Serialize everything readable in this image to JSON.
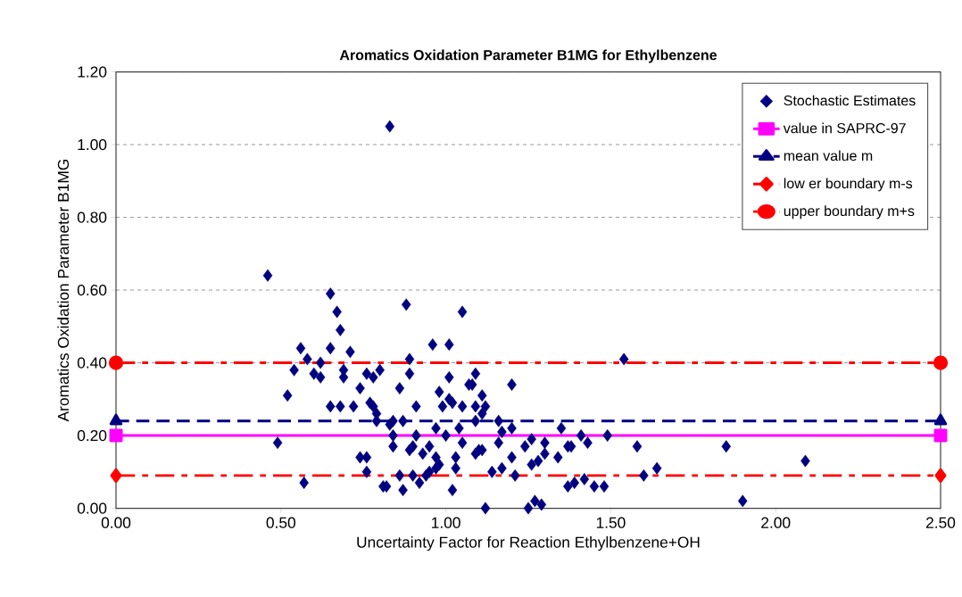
{
  "chart_data": {
    "type": "scatter",
    "title": "Aromatics Oxidation Parameter B1MG for Ethylbenzene",
    "xlabel": "Uncertainty Factor for Reaction Ethylbenzene+OH",
    "ylabel": "Aromatics Oxidation Parameter B1MG",
    "xlim": [
      0,
      2.5
    ],
    "ylim": [
      0,
      1.2
    ],
    "xticks": [
      {
        "value": 0,
        "label": "0.00"
      },
      {
        "value": 0.5,
        "label": "0.50"
      },
      {
        "value": 1,
        "label": "1.00"
      },
      {
        "value": 1.5,
        "label": "1.50"
      },
      {
        "value": 2,
        "label": "2.00"
      },
      {
        "value": 2.5,
        "label": "2.50"
      }
    ],
    "yticks": [
      {
        "value": 0,
        "label": "0.00"
      },
      {
        "value": 0.2,
        "label": "0.20"
      },
      {
        "value": 0.4,
        "label": "0.40"
      },
      {
        "value": 0.6,
        "label": "0.60"
      },
      {
        "value": 0.8,
        "label": "0.80"
      },
      {
        "value": 1,
        "label": "1.00"
      },
      {
        "value": 1.2,
        "label": "1.20"
      }
    ],
    "grid": "y",
    "legend": "top right",
    "series": [
      {
        "name": "Stochastic Estimates",
        "marker": "diamond",
        "color": "#000080",
        "x": [
          0.83,
          0.46,
          0.65,
          0.67,
          0.68,
          0.56,
          0.65,
          0.71,
          0.58,
          0.62,
          0.54,
          0.6,
          0.62,
          0.69,
          0.69,
          0.74,
          0.76,
          0.78,
          0.8,
          0.52,
          0.65,
          0.68,
          0.72,
          0.77,
          0.78,
          0.79,
          0.79,
          0.49,
          0.74,
          0.76,
          0.76,
          0.57,
          0.81,
          0.88,
          1.05,
          0.96,
          1.01,
          0.89,
          0.89,
          1.01,
          1.09,
          0.86,
          0.98,
          1.01,
          1.02,
          1.07,
          1.08,
          1.11,
          1.2,
          0.91,
          0.99,
          1.05,
          1.09,
          1.12,
          1.11,
          1.09,
          0.83,
          0.84,
          0.87,
          0.97,
          1.04,
          1.16,
          1.17,
          1.2,
          1.35,
          0.84,
          1.0,
          1.05,
          0.91,
          0.84,
          0.89,
          0.9,
          0.95,
          0.93,
          0.97,
          1.03,
          1.09,
          1.1,
          1.11,
          1.16,
          1.2,
          1.24,
          1.26,
          1.26,
          1.28,
          1.3,
          1.3,
          1.34,
          1.37,
          0.95,
          0.97,
          0.98,
          0.94,
          1.03,
          0.86,
          0.9,
          0.92,
          0.82,
          0.87,
          1.02,
          1.14,
          1.17,
          1.21,
          1.12,
          1.25,
          1.27,
          1.29,
          1.37,
          1.54,
          1.41,
          1.43,
          1.49,
          1.38,
          1.58,
          1.85,
          1.39,
          1.42,
          1.45,
          1.48,
          1.6,
          1.64,
          1.9,
          2.09
        ],
        "values": [
          1.05,
          0.64,
          0.59,
          0.54,
          0.49,
          0.44,
          0.44,
          0.43,
          0.41,
          0.4,
          0.38,
          0.37,
          0.36,
          0.38,
          0.36,
          0.33,
          0.37,
          0.36,
          0.38,
          0.31,
          0.28,
          0.28,
          0.28,
          0.29,
          0.28,
          0.26,
          0.24,
          0.18,
          0.14,
          0.14,
          0.1,
          0.07,
          0.06,
          0.56,
          0.54,
          0.45,
          0.45,
          0.41,
          0.37,
          0.36,
          0.37,
          0.33,
          0.32,
          0.3,
          0.29,
          0.34,
          0.34,
          0.31,
          0.34,
          0.28,
          0.28,
          0.28,
          0.28,
          0.28,
          0.26,
          0.24,
          0.23,
          0.24,
          0.24,
          0.22,
          0.22,
          0.24,
          0.21,
          0.22,
          0.22,
          0.2,
          0.2,
          0.18,
          0.2,
          0.17,
          0.16,
          0.17,
          0.17,
          0.15,
          0.14,
          0.14,
          0.15,
          0.16,
          0.16,
          0.18,
          0.14,
          0.17,
          0.19,
          0.12,
          0.13,
          0.18,
          0.15,
          0.14,
          0.17,
          0.1,
          0.11,
          0.12,
          0.09,
          0.11,
          0.09,
          0.09,
          0.07,
          0.06,
          0.05,
          0.05,
          0.1,
          0.11,
          0.09,
          0.0,
          0.0,
          0.02,
          0.01,
          0.06,
          0.41,
          0.2,
          0.18,
          0.2,
          0.17,
          0.17,
          0.17,
          0.07,
          0.08,
          0.06,
          0.06,
          0.09,
          0.11,
          0.02,
          0.13
        ]
      },
      {
        "name": "value in SAPRC-97",
        "type": "line",
        "marker": "square",
        "line_style": "solid",
        "color": "#ff00ff",
        "x": [
          0,
          2.5
        ],
        "values": [
          0.2,
          0.2
        ]
      },
      {
        "name": "mean value m",
        "type": "line",
        "marker": "triangle",
        "line_style": "dashed",
        "color": "#000080",
        "x": [
          0,
          2.5
        ],
        "values": [
          0.24,
          0.24
        ]
      },
      {
        "name": "low er boundary m-s",
        "type": "line",
        "marker": "diamond",
        "line_style": "dashdot",
        "color": "#ff0000",
        "x": [
          0,
          2.5
        ],
        "values": [
          0.09,
          0.09
        ]
      },
      {
        "name": "upper boundary m+s",
        "type": "line",
        "marker": "circle",
        "line_style": "dashdot",
        "color": "#ff0000",
        "x": [
          0,
          2.5
        ],
        "values": [
          0.4,
          0.4
        ]
      }
    ]
  }
}
